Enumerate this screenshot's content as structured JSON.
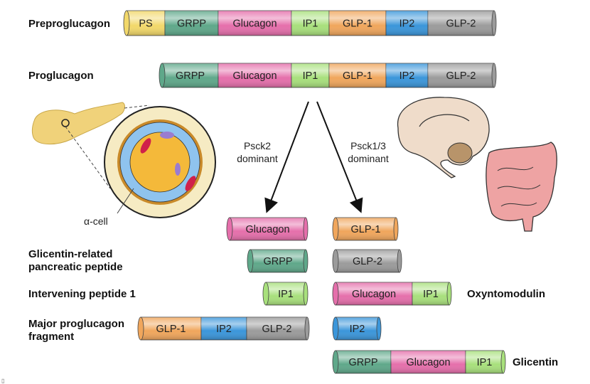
{
  "colors": {
    "PS": "#f2d86a",
    "GRPP": "#5fa88a",
    "Glucagon": "#e56fab",
    "IP1": "#a8e07c",
    "GLP-1": "#f0a65c",
    "IP2": "#3b96da",
    "GLP-2": "#9b9b9b"
  },
  "labels": {
    "preproglucagon": "Preproglucagon",
    "proglucagon": "Proglucagon",
    "grpp_line1": "Glicentin-related",
    "grpp_line2": "pancreatic peptide",
    "ip1": "Intervening peptide 1",
    "mpgf_line1": "Major proglucagon",
    "mpgf_line2": "fragment",
    "oxyntomodulin": "Oxyntomodulin",
    "glicentin": "Glicentin",
    "psck2_line1": "Psck2",
    "psck2_line2": "dominant",
    "psck13_line1": "Psck1/3",
    "psck13_line2": "dominant",
    "alpha_cell": "α-cell"
  },
  "bars": [
    {
      "id": "preproglucagon",
      "segments": [
        "PS",
        "GRPP",
        "Glucagon",
        "IP1",
        "GLP-1",
        "IP2",
        "GLP-2"
      ]
    },
    {
      "id": "proglucagon",
      "segments": [
        "GRPP",
        "Glucagon",
        "IP1",
        "GLP-1",
        "IP2",
        "GLP-2"
      ]
    },
    {
      "id": "glucagon",
      "segments": [
        "Glucagon"
      ]
    },
    {
      "id": "glp1",
      "segments": [
        "GLP-1"
      ]
    },
    {
      "id": "grpp",
      "segments": [
        "GRPP"
      ]
    },
    {
      "id": "glp2",
      "segments": [
        "GLP-2"
      ]
    },
    {
      "id": "ip1",
      "segments": [
        "IP1"
      ]
    },
    {
      "id": "oxyntomodulin",
      "segments": [
        "Glucagon",
        "IP1"
      ]
    },
    {
      "id": "mpgf",
      "segments": [
        "GLP-1",
        "IP2",
        "GLP-2"
      ]
    },
    {
      "id": "ip2",
      "segments": [
        "IP2"
      ]
    },
    {
      "id": "glicentin",
      "segments": [
        "GRPP",
        "Glucagon",
        "IP1"
      ]
    }
  ],
  "icons": [
    "pancreas-icon",
    "islet-icon",
    "brain-icon",
    "intestine-icon"
  ]
}
